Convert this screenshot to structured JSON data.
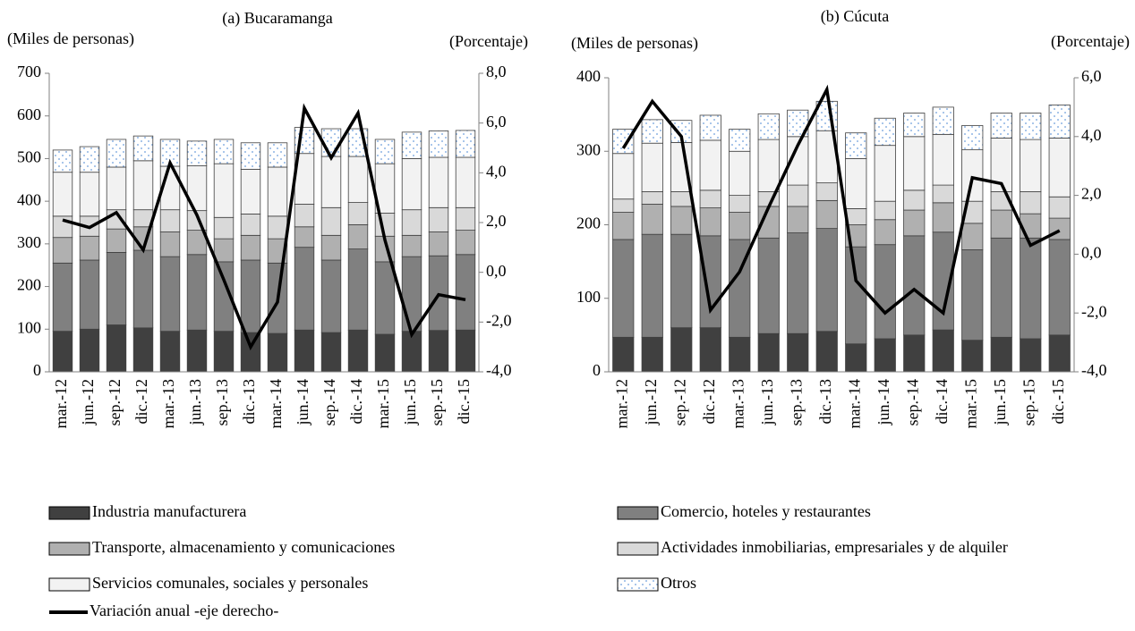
{
  "chart_data": [
    {
      "type": "stacked-bar-line",
      "title": "(a) Bucaramanga",
      "ylabel": "(Miles de personas)",
      "y2label": "(Porcentaje)",
      "categories": [
        "mar.-12",
        "jun.-12",
        "sep.-12",
        "dic.-12",
        "mar.-13",
        "jun.-13",
        "sep.-13",
        "dic.-13",
        "mar.-14",
        "jun.-14",
        "sep.-14",
        "dic.-14",
        "mar.-15",
        "jun.-15",
        "sep.-15",
        "dic.-15"
      ],
      "ylim": [
        0,
        700
      ],
      "yticks": [
        0,
        100,
        200,
        300,
        400,
        500,
        600,
        700
      ],
      "y2lim": [
        -4,
        8
      ],
      "y2ticks": [
        {
          "value": -4,
          "label": "-4,0"
        },
        {
          "value": -2,
          "label": "-2,0"
        },
        {
          "value": 0,
          "label": "0,0"
        },
        {
          "value": 2,
          "label": "2,0"
        },
        {
          "value": 4,
          "label": "4,0"
        },
        {
          "value": 6,
          "label": "6,0"
        },
        {
          "value": 8,
          "label": "8,0"
        }
      ],
      "series": [
        {
          "name": "Industria manufacturera",
          "color": "#404040",
          "values": [
            95,
            100,
            110,
            103,
            95,
            98,
            95,
            92,
            90,
            98,
            92,
            98,
            88,
            95,
            97,
            98
          ]
        },
        {
          "name": "Comercio, hoteles y restaurantes",
          "color": "#808080",
          "values": [
            160,
            162,
            170,
            182,
            175,
            177,
            163,
            170,
            165,
            194,
            170,
            190,
            170,
            175,
            175,
            177
          ]
        },
        {
          "name": "Transporte, almacenamiento y comunicaciones",
          "color": "#b0b0b0",
          "values": [
            60,
            56,
            55,
            55,
            58,
            57,
            54,
            58,
            57,
            48,
            58,
            57,
            60,
            50,
            56,
            57
          ]
        },
        {
          "name": "Actividades inmobiliarias, empresariales y de alquiler",
          "color": "#d9d9d9",
          "values": [
            50,
            47,
            45,
            40,
            52,
            46,
            50,
            50,
            53,
            53,
            65,
            52,
            54,
            60,
            57,
            53
          ]
        },
        {
          "name": "Servicios comunales, sociales y personales",
          "color": "#f2f2f2",
          "values": [
            103,
            103,
            100,
            115,
            102,
            105,
            126,
            105,
            115,
            119,
            120,
            108,
            116,
            120,
            118,
            118
          ]
        },
        {
          "name": "Otros",
          "color": "#8eb4e3",
          "pattern": "dots",
          "values": [
            52,
            60,
            65,
            58,
            63,
            58,
            57,
            62,
            57,
            61,
            65,
            65,
            57,
            62,
            62,
            63
          ]
        },
        {
          "name": "Variación anual -eje derecho-",
          "color": "#000000",
          "axis": "y2",
          "values": [
            2.1,
            1.8,
            2.4,
            0.9,
            4.4,
            2.3,
            -0.3,
            -3.0,
            -1.2,
            6.6,
            4.6,
            6.4,
            1.3,
            -2.5,
            -0.9,
            -1.1
          ]
        }
      ]
    },
    {
      "type": "stacked-bar-line",
      "title": "(b) Cúcuta",
      "ylabel": "(Miles de personas)",
      "y2label": "(Porcentaje)",
      "categories": [
        "mar.-12",
        "jun.-12",
        "sep.-12",
        "dic.-12",
        "mar.-13",
        "jun.-13",
        "sep.-13",
        "dic.-13",
        "mar.-14",
        "jun.-14",
        "sep.-14",
        "dic.-14",
        "mar.-15",
        "jun.-15",
        "sep.-15",
        "dic.-15"
      ],
      "ylim": [
        0,
        400
      ],
      "yticks": [
        0,
        100,
        200,
        300,
        400
      ],
      "y2lim": [
        -4,
        6
      ],
      "y2ticks": [
        {
          "value": -4,
          "label": "-4,0"
        },
        {
          "value": -2,
          "label": "-2,0"
        },
        {
          "value": 0,
          "label": "0,0"
        },
        {
          "value": 2,
          "label": "2,0"
        },
        {
          "value": 4,
          "label": "4,0"
        },
        {
          "value": 6,
          "label": "6,0"
        }
      ],
      "series": [
        {
          "name": "Industria manufacturera",
          "color": "#404040",
          "values": [
            47,
            47,
            60,
            60,
            47,
            52,
            52,
            55,
            38,
            45,
            50,
            57,
            43,
            47,
            45,
            50
          ]
        },
        {
          "name": "Comercio, hoteles y restaurantes",
          "color": "#808080",
          "values": [
            133,
            140,
            127,
            125,
            133,
            130,
            137,
            140,
            132,
            128,
            135,
            133,
            123,
            135,
            137,
            130
          ]
        },
        {
          "name": "Transporte, almacenamiento y comunicaciones",
          "color": "#b0b0b0",
          "values": [
            37,
            41,
            38,
            38,
            37,
            43,
            36,
            38,
            30,
            34,
            35,
            40,
            36,
            38,
            33,
            29
          ]
        },
        {
          "name": "Actividades inmobiliarias, empresariales y de alquiler",
          "color": "#d9d9d9",
          "values": [
            18,
            17,
            20,
            24,
            23,
            20,
            29,
            24,
            22,
            25,
            27,
            24,
            30,
            25,
            30,
            29
          ]
        },
        {
          "name": "Servicios comunales, sociales y personales",
          "color": "#f2f2f2",
          "values": [
            62,
            66,
            67,
            68,
            60,
            71,
            66,
            71,
            68,
            76,
            73,
            69,
            70,
            73,
            71,
            80
          ]
        },
        {
          "name": "Otros",
          "color": "#8eb4e3",
          "pattern": "dots",
          "values": [
            33,
            32,
            30,
            34,
            30,
            35,
            36,
            40,
            35,
            37,
            32,
            37,
            33,
            34,
            36,
            45
          ]
        },
        {
          "name": "Variación anual -eje derecho-",
          "color": "#000000",
          "axis": "y2",
          "values": [
            3.6,
            5.2,
            4.0,
            -1.9,
            -0.6,
            1.6,
            3.7,
            5.6,
            -0.9,
            -2.0,
            -1.2,
            -2.0,
            2.6,
            2.4,
            0.3,
            0.8
          ]
        }
      ]
    }
  ]
}
